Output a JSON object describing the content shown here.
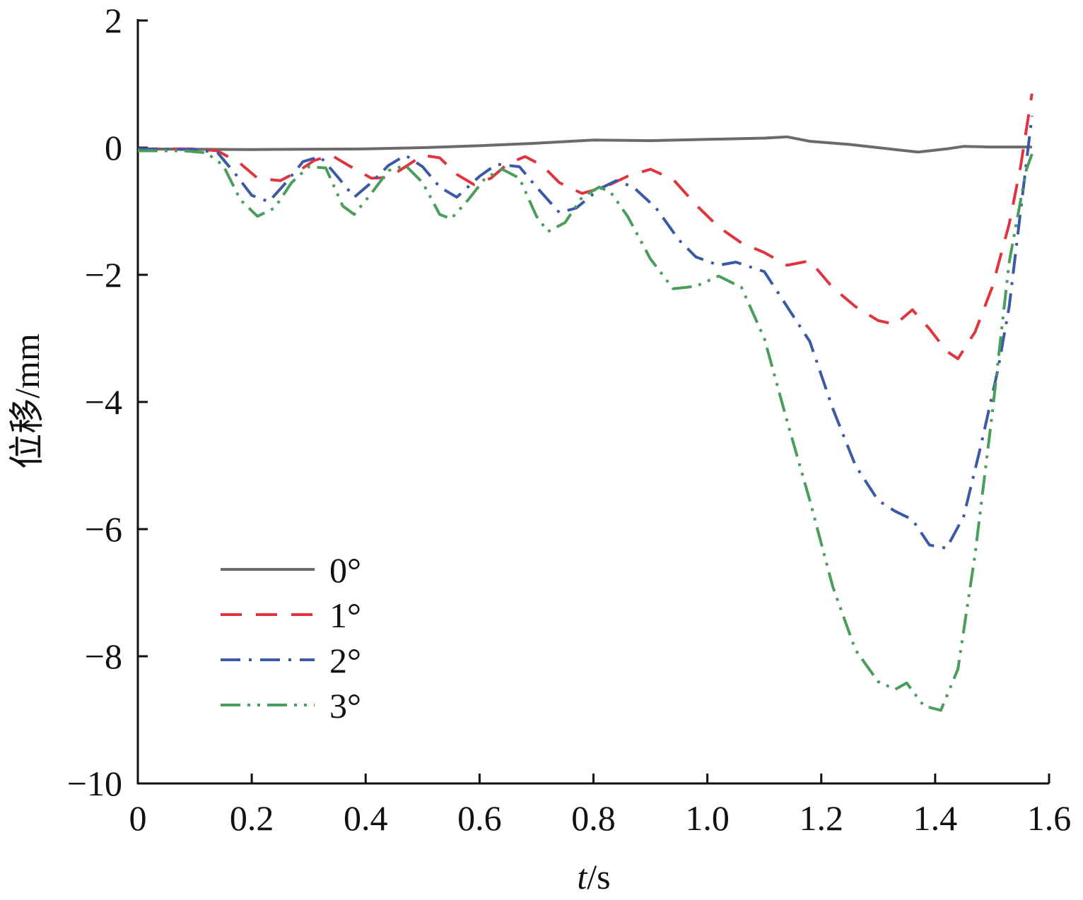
{
  "chart_data": {
    "type": "line",
    "xlabel_italic": "t",
    "xlabel_rest": "/s",
    "ylabel": "位移/mm",
    "xlim": [
      0,
      1.6
    ],
    "ylim": [
      -10,
      2
    ],
    "xticks": [
      0,
      0.2,
      0.4,
      0.6,
      0.8,
      1.0,
      1.2,
      1.4,
      1.6
    ],
    "xtick_labels": [
      "0",
      "0.2",
      "0.4",
      "0.6",
      "0.8",
      "1.0",
      "1.2",
      "1.4",
      "1.6"
    ],
    "yticks": [
      2,
      0,
      -2,
      -4,
      -6,
      -8,
      -10
    ],
    "ytick_labels": [
      "2",
      "0",
      "−2",
      "−4",
      "−6",
      "−8",
      "−10"
    ],
    "grid": false,
    "legend_position": "bottom-left",
    "series": [
      {
        "name": "0°",
        "color": "#6b6b6b",
        "dash": "solid",
        "points": [
          [
            0,
            -0.02
          ],
          [
            0.2,
            -0.03
          ],
          [
            0.4,
            -0.02
          ],
          [
            0.5,
            0.0
          ],
          [
            0.6,
            0.03
          ],
          [
            0.7,
            0.07
          ],
          [
            0.8,
            0.12
          ],
          [
            0.9,
            0.11
          ],
          [
            1.0,
            0.13
          ],
          [
            1.1,
            0.15
          ],
          [
            1.14,
            0.17
          ],
          [
            1.18,
            0.1
          ],
          [
            1.25,
            0.05
          ],
          [
            1.3,
            0.0
          ],
          [
            1.37,
            -0.07
          ],
          [
            1.42,
            -0.02
          ],
          [
            1.45,
            0.02
          ],
          [
            1.5,
            0.01
          ],
          [
            1.57,
            0.01
          ]
        ]
      },
      {
        "name": "1°",
        "color": "#e0343f",
        "dash": "dashed",
        "points": [
          [
            0,
            -0.02
          ],
          [
            0.1,
            -0.02
          ],
          [
            0.14,
            -0.05
          ],
          [
            0.18,
            -0.25
          ],
          [
            0.21,
            -0.48
          ],
          [
            0.25,
            -0.52
          ],
          [
            0.28,
            -0.38
          ],
          [
            0.31,
            -0.2
          ],
          [
            0.34,
            -0.12
          ],
          [
            0.37,
            -0.28
          ],
          [
            0.41,
            -0.48
          ],
          [
            0.44,
            -0.47
          ],
          [
            0.47,
            -0.3
          ],
          [
            0.5,
            -0.12
          ],
          [
            0.53,
            -0.16
          ],
          [
            0.56,
            -0.42
          ],
          [
            0.59,
            -0.58
          ],
          [
            0.62,
            -0.48
          ],
          [
            0.65,
            -0.25
          ],
          [
            0.68,
            -0.14
          ],
          [
            0.71,
            -0.28
          ],
          [
            0.74,
            -0.55
          ],
          [
            0.78,
            -0.72
          ],
          [
            0.82,
            -0.62
          ],
          [
            0.86,
            -0.45
          ],
          [
            0.9,
            -0.34
          ],
          [
            0.94,
            -0.5
          ],
          [
            0.98,
            -0.9
          ],
          [
            1.02,
            -1.25
          ],
          [
            1.06,
            -1.5
          ],
          [
            1.1,
            -1.65
          ],
          [
            1.14,
            -1.85
          ],
          [
            1.18,
            -1.78
          ],
          [
            1.22,
            -2.2
          ],
          [
            1.26,
            -2.5
          ],
          [
            1.3,
            -2.72
          ],
          [
            1.33,
            -2.78
          ],
          [
            1.36,
            -2.55
          ],
          [
            1.39,
            -2.85
          ],
          [
            1.42,
            -3.2
          ],
          [
            1.44,
            -3.32
          ],
          [
            1.47,
            -2.9
          ],
          [
            1.5,
            -2.2
          ],
          [
            1.53,
            -1.2
          ],
          [
            1.55,
            -0.3
          ],
          [
            1.57,
            0.85
          ]
        ]
      },
      {
        "name": "2°",
        "color": "#3b5aa6",
        "dash": "dashdot",
        "points": [
          [
            0,
            -0.02
          ],
          [
            0.1,
            -0.03
          ],
          [
            0.14,
            -0.08
          ],
          [
            0.17,
            -0.4
          ],
          [
            0.2,
            -0.75
          ],
          [
            0.23,
            -0.85
          ],
          [
            0.26,
            -0.55
          ],
          [
            0.29,
            -0.22
          ],
          [
            0.32,
            -0.14
          ],
          [
            0.35,
            -0.45
          ],
          [
            0.38,
            -0.78
          ],
          [
            0.41,
            -0.55
          ],
          [
            0.44,
            -0.28
          ],
          [
            0.47,
            -0.12
          ],
          [
            0.5,
            -0.3
          ],
          [
            0.53,
            -0.62
          ],
          [
            0.56,
            -0.78
          ],
          [
            0.6,
            -0.45
          ],
          [
            0.63,
            -0.26
          ],
          [
            0.67,
            -0.3
          ],
          [
            0.7,
            -0.62
          ],
          [
            0.74,
            -1.02
          ],
          [
            0.77,
            -0.95
          ],
          [
            0.81,
            -0.65
          ],
          [
            0.84,
            -0.52
          ],
          [
            0.87,
            -0.62
          ],
          [
            0.91,
            -0.95
          ],
          [
            0.95,
            -1.45
          ],
          [
            0.98,
            -1.72
          ],
          [
            1.02,
            -1.85
          ],
          [
            1.05,
            -1.8
          ],
          [
            1.1,
            -1.95
          ],
          [
            1.14,
            -2.5
          ],
          [
            1.18,
            -3.05
          ],
          [
            1.22,
            -4.1
          ],
          [
            1.26,
            -5.0
          ],
          [
            1.3,
            -5.55
          ],
          [
            1.33,
            -5.72
          ],
          [
            1.36,
            -5.85
          ],
          [
            1.39,
            -6.25
          ],
          [
            1.42,
            -6.3
          ],
          [
            1.45,
            -5.8
          ],
          [
            1.48,
            -4.7
          ],
          [
            1.51,
            -3.5
          ],
          [
            1.53,
            -2.5
          ],
          [
            1.55,
            -1.0
          ],
          [
            1.57,
            0.5
          ]
        ]
      },
      {
        "name": "3°",
        "color": "#4a9d5b",
        "dash": "dashdotdot",
        "points": [
          [
            0,
            -0.05
          ],
          [
            0.08,
            -0.05
          ],
          [
            0.12,
            -0.08
          ],
          [
            0.15,
            -0.28
          ],
          [
            0.18,
            -0.82
          ],
          [
            0.21,
            -1.08
          ],
          [
            0.24,
            -0.95
          ],
          [
            0.27,
            -0.55
          ],
          [
            0.3,
            -0.3
          ],
          [
            0.33,
            -0.32
          ],
          [
            0.36,
            -0.92
          ],
          [
            0.38,
            -1.05
          ],
          [
            0.41,
            -0.72
          ],
          [
            0.44,
            -0.36
          ],
          [
            0.47,
            -0.28
          ],
          [
            0.5,
            -0.55
          ],
          [
            0.53,
            -1.05
          ],
          [
            0.55,
            -1.12
          ],
          [
            0.58,
            -0.82
          ],
          [
            0.61,
            -0.48
          ],
          [
            0.64,
            -0.34
          ],
          [
            0.67,
            -0.48
          ],
          [
            0.7,
            -1.08
          ],
          [
            0.72,
            -1.32
          ],
          [
            0.75,
            -1.18
          ],
          [
            0.78,
            -0.78
          ],
          [
            0.81,
            -0.62
          ],
          [
            0.83,
            -0.7
          ],
          [
            0.86,
            -1.08
          ],
          [
            0.9,
            -1.75
          ],
          [
            0.94,
            -2.22
          ],
          [
            0.98,
            -2.18
          ],
          [
            1.02,
            -2.02
          ],
          [
            1.06,
            -2.2
          ],
          [
            1.1,
            -3.0
          ],
          [
            1.14,
            -4.3
          ],
          [
            1.18,
            -5.55
          ],
          [
            1.22,
            -6.9
          ],
          [
            1.26,
            -7.9
          ],
          [
            1.3,
            -8.4
          ],
          [
            1.33,
            -8.52
          ],
          [
            1.35,
            -8.42
          ],
          [
            1.38,
            -8.78
          ],
          [
            1.41,
            -8.85
          ],
          [
            1.44,
            -8.2
          ],
          [
            1.47,
            -6.4
          ],
          [
            1.5,
            -4.2
          ],
          [
            1.53,
            -1.8
          ],
          [
            1.56,
            -0.35
          ],
          [
            1.57,
            -0.1
          ]
        ]
      }
    ]
  }
}
